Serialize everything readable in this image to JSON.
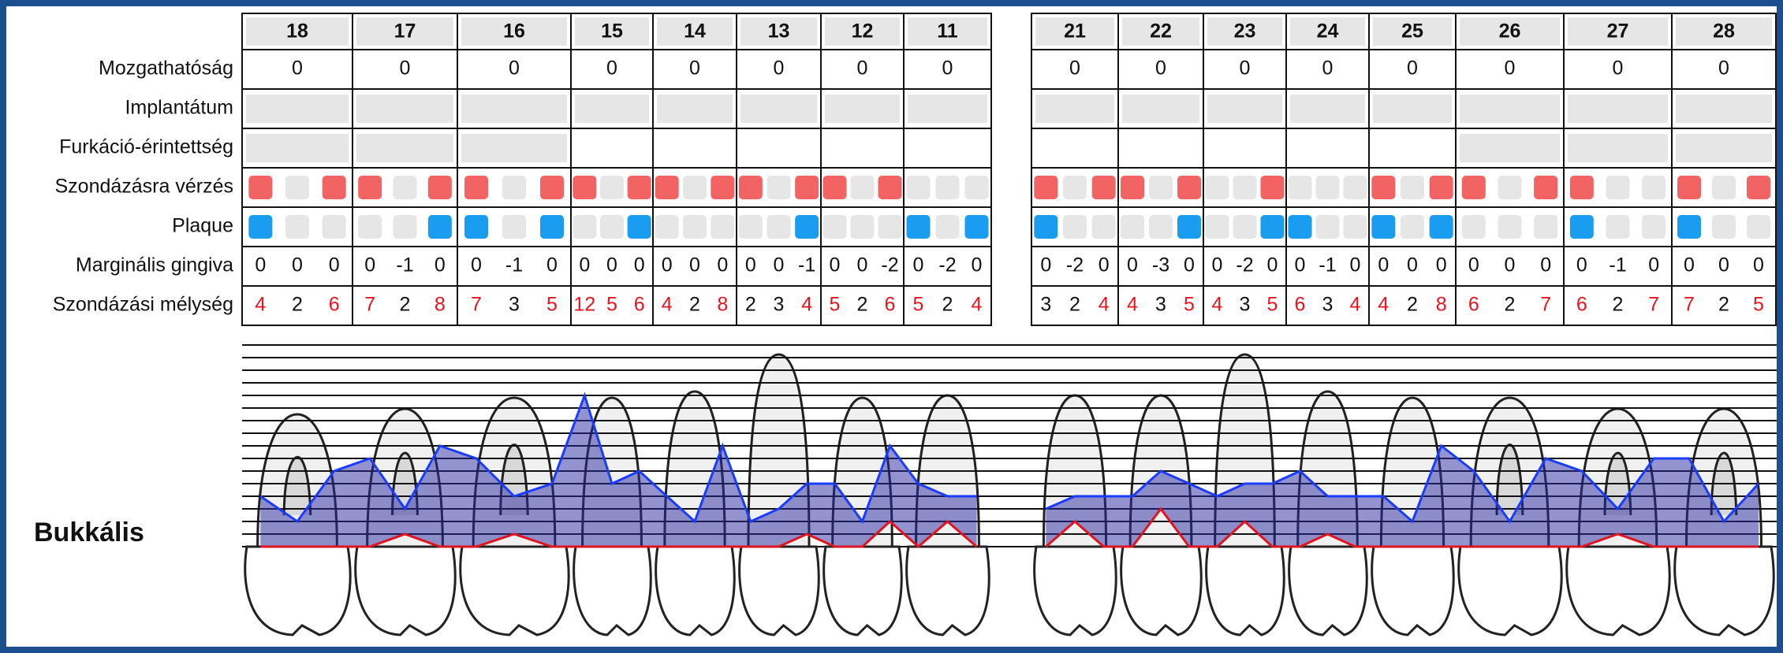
{
  "row_labels": {
    "mobility": "Mozgathatóság",
    "implant": "Implantátum",
    "furcation": "Furkáció-érintettség",
    "bleeding": "Szondázásra vérzés",
    "plaque": "Plaque",
    "margin": "Marginális gingiva",
    "depth": "Szondázási mélység"
  },
  "side_label": "Bukkális",
  "jaws": [
    {
      "teeth": [
        18,
        17,
        16,
        15,
        14,
        13,
        12,
        11
      ],
      "mobility": [
        0,
        0,
        0,
        0,
        0,
        0,
        0,
        0
      ],
      "bleeding": [
        [
          true,
          false,
          true
        ],
        [
          true,
          false,
          true
        ],
        [
          true,
          false,
          true
        ],
        [
          true,
          false,
          true
        ],
        [
          true,
          false,
          true
        ],
        [
          true,
          false,
          true
        ],
        [
          true,
          false,
          true
        ],
        [
          false,
          false,
          false
        ]
      ],
      "plaque": [
        [
          true,
          false,
          false
        ],
        [
          false,
          false,
          true
        ],
        [
          true,
          false,
          true
        ],
        [
          false,
          false,
          true
        ],
        [
          false,
          false,
          false
        ],
        [
          false,
          false,
          true
        ],
        [
          false,
          false,
          false
        ],
        [
          true,
          false,
          true
        ]
      ],
      "margin": [
        [
          0,
          0,
          0
        ],
        [
          0,
          -1,
          0
        ],
        [
          0,
          -1,
          0
        ],
        [
          0,
          0,
          0
        ],
        [
          0,
          0,
          0
        ],
        [
          0,
          0,
          -1
        ],
        [
          0,
          0,
          -2
        ],
        [
          0,
          -2,
          0
        ]
      ],
      "depth": [
        [
          4,
          2,
          6
        ],
        [
          7,
          2,
          8
        ],
        [
          7,
          3,
          5
        ],
        [
          12,
          5,
          6
        ],
        [
          4,
          2,
          8
        ],
        [
          2,
          3,
          4
        ],
        [
          5,
          2,
          6
        ],
        [
          5,
          2,
          4
        ]
      ]
    },
    {
      "teeth": [
        21,
        22,
        23,
        24,
        25,
        26,
        27,
        28
      ],
      "mobility": [
        0,
        0,
        0,
        0,
        0,
        0,
        0,
        0
      ],
      "bleeding": [
        [
          true,
          false,
          true
        ],
        [
          true,
          false,
          true
        ],
        [
          false,
          false,
          true
        ],
        [
          false,
          false,
          false
        ],
        [
          true,
          false,
          true
        ],
        [
          true,
          false,
          true
        ],
        [
          true,
          false,
          false
        ],
        [
          true,
          false,
          true
        ]
      ],
      "plaque": [
        [
          true,
          false,
          false
        ],
        [
          false,
          false,
          true
        ],
        [
          false,
          false,
          true
        ],
        [
          true,
          false,
          false
        ],
        [
          true,
          false,
          true
        ],
        [
          false,
          false,
          false
        ],
        [
          true,
          false,
          false
        ],
        [
          true,
          false,
          false
        ]
      ],
      "margin": [
        [
          0,
          -2,
          0
        ],
        [
          0,
          -3,
          0
        ],
        [
          0,
          -2,
          0
        ],
        [
          0,
          -1,
          0
        ],
        [
          0,
          0,
          0
        ],
        [
          0,
          0,
          0
        ],
        [
          0,
          -1,
          0
        ],
        [
          0,
          0,
          0
        ]
      ],
      "depth": [
        [
          3,
          2,
          4
        ],
        [
          4,
          3,
          5
        ],
        [
          4,
          3,
          5
        ],
        [
          6,
          3,
          4
        ],
        [
          4,
          2,
          8
        ],
        [
          6,
          2,
          7
        ],
        [
          6,
          2,
          7
        ],
        [
          7,
          2,
          5
        ]
      ]
    }
  ]
}
